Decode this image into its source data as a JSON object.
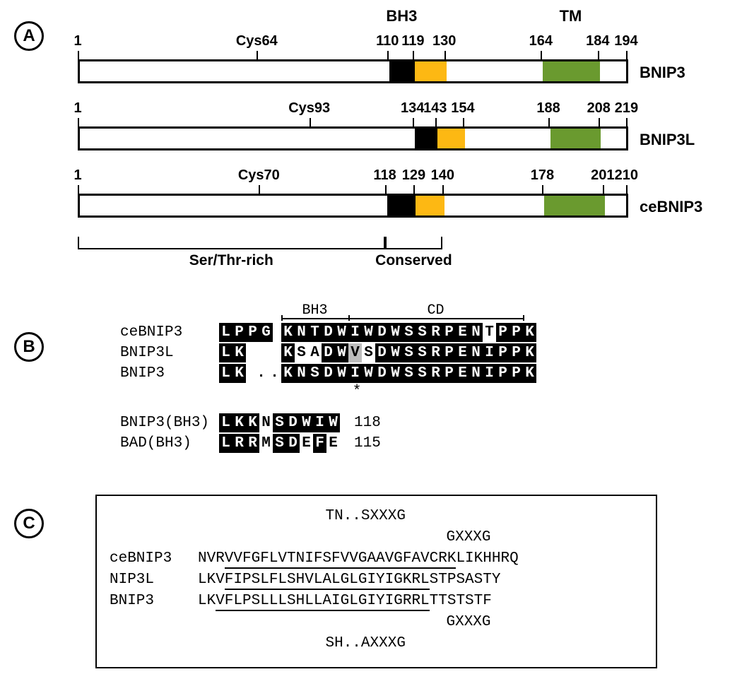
{
  "panelLabels": {
    "A": "A",
    "B": "B",
    "C": "C"
  },
  "panelA": {
    "header": {
      "bh3": "BH3",
      "tm": "TM"
    },
    "maxLen": 219,
    "barWidthPx": 780,
    "colors": {
      "bh3": "#000000",
      "cons": "#fdb813",
      "tm": "#6a9a2f",
      "outline": "#000000",
      "bg": "#ffffff"
    },
    "proteins": [
      {
        "name": "BNIP3",
        "length": 194,
        "ticks": [
          {
            "pos": 1,
            "label": "1"
          },
          {
            "pos": 64,
            "label": "Cys64"
          },
          {
            "pos": 110,
            "label": "110"
          },
          {
            "pos": 119,
            "label": "119"
          },
          {
            "pos": 130,
            "label": "130"
          },
          {
            "pos": 164,
            "label": "164"
          },
          {
            "pos": 184,
            "label": "184"
          },
          {
            "pos": 194,
            "label": "194"
          }
        ],
        "domains": [
          {
            "start": 110,
            "end": 119,
            "role": "bh3"
          },
          {
            "start": 119,
            "end": 130,
            "role": "cons"
          },
          {
            "start": 164,
            "end": 184,
            "role": "tm"
          }
        ]
      },
      {
        "name": "BNIP3L",
        "length": 219,
        "ticks": [
          {
            "pos": 1,
            "label": "1"
          },
          {
            "pos": 93,
            "label": "Cys93"
          },
          {
            "pos": 134,
            "label": "134"
          },
          {
            "pos": 143,
            "label": "143"
          },
          {
            "pos": 154,
            "label": "154"
          },
          {
            "pos": 188,
            "label": "188"
          },
          {
            "pos": 208,
            "label": "208"
          },
          {
            "pos": 219,
            "label": "219"
          }
        ],
        "domains": [
          {
            "start": 134,
            "end": 143,
            "role": "bh3"
          },
          {
            "start": 143,
            "end": 154,
            "role": "cons"
          },
          {
            "start": 188,
            "end": 208,
            "role": "tm"
          }
        ]
      },
      {
        "name": "ceBNIP3",
        "length": 210,
        "ticks": [
          {
            "pos": 1,
            "label": "1"
          },
          {
            "pos": 70,
            "label": "Cys70"
          },
          {
            "pos": 118,
            "label": "118"
          },
          {
            "pos": 129,
            "label": "129"
          },
          {
            "pos": 140,
            "label": "140"
          },
          {
            "pos": 178,
            "label": "178"
          },
          {
            "pos": 201,
            "label": "201"
          },
          {
            "pos": 210,
            "label": "210"
          }
        ],
        "domains": [
          {
            "start": 118,
            "end": 129,
            "role": "bh3"
          },
          {
            "start": 129,
            "end": 140,
            "role": "cons"
          },
          {
            "start": 178,
            "end": 201,
            "role": "tm"
          }
        ]
      }
    ],
    "braces": [
      {
        "start": 1,
        "end": 118,
        "label": "Ser/Thr-rich"
      },
      {
        "start": 118,
        "end": 140,
        "label": "Conserved"
      }
    ]
  },
  "panelB": {
    "header": {
      "bh3": "BH3",
      "cd": "CD"
    },
    "charPx": 19,
    "headerSplit": 9,
    "headerTotal": 22,
    "block1": [
      {
        "name": "ceBNIP3",
        "seq": "LPPGKNTDWIWDWSSRPENTPPK",
        "style": "iiiiiiiiiiiiiiiiiiipiii",
        "gapAfter": [
          3
        ]
      },
      {
        "name": "BNIP3L",
        "seq": "LK  KSADWVSDWSSRPENIPPK",
        "style": "ii  ippiigpiiiiiiiiiiii",
        "gapAfter": [
          1
        ]
      },
      {
        "name": "BNIP3",
        "seq": "LK..KNSDWIWDWSSRPENIPPK",
        "style": "iippiiiiiiiiiiiiiiiiiii",
        "gapAfter": [
          1
        ]
      }
    ],
    "starPos": 9,
    "block2": [
      {
        "name": "BNIP3(BH3)",
        "seq": "LKKNSDWIW",
        "style": "iiipiiiii",
        "num": "118"
      },
      {
        "name": "BAD(BH3)",
        "seq": "LRRMSDEFE",
        "style": "iiipiipip",
        "num": "115"
      }
    ]
  },
  "panelC": {
    "charPx": 19,
    "nameWidthChars": 0,
    "motifTop1": "TN..SXXXG",
    "motifTop2": "GXXXG",
    "rows": [
      {
        "name": "ceBNIP3",
        "seq": "NVRVVFGFLVTNIFSFVVGAAVGFAVCRKLIKHHRQ",
        "und": [
          3,
          29
        ]
      },
      {
        "name": "NIP3L",
        "seq": "LKVFIPSLFLSHVLALGLGIYIGKRLSTPSASTY",
        "und": [
          3,
          26
        ]
      },
      {
        "name": "BNIP3",
        "seq": "LKVFLPSLLLSHLLAIGLGIYIGRRLTTSTSTF",
        "und": [
          2,
          26
        ]
      }
    ],
    "motifBot1": "GXXXG",
    "motifBot2": "SH..AXXXG"
  }
}
